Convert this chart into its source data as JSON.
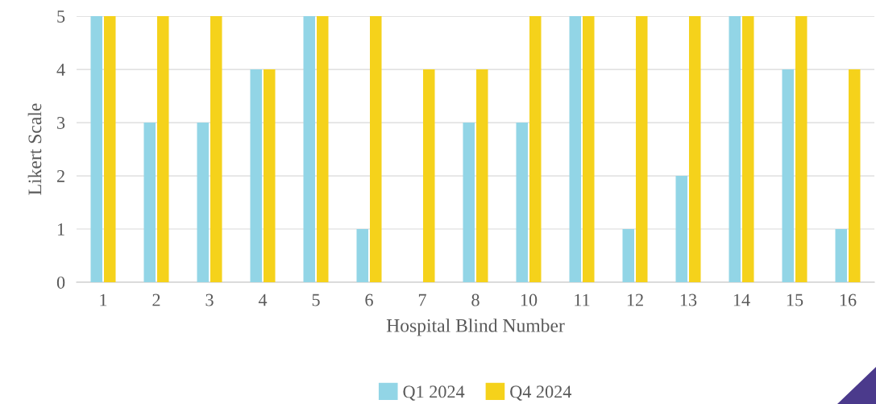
{
  "chart_data": {
    "type": "bar",
    "xlabel": "Hospital Blind Number",
    "ylabel": "Likert Scale",
    "categories": [
      "1",
      "2",
      "3",
      "4",
      "5",
      "6",
      "7",
      "8",
      "10",
      "11",
      "12",
      "13",
      "14",
      "15",
      "16"
    ],
    "series": [
      {
        "name": "Q1 2024",
        "color": "#92d5e6",
        "values": [
          5,
          3,
          3,
          4,
          5,
          1,
          0,
          3,
          3,
          5,
          1,
          2,
          5,
          4,
          1
        ]
      },
      {
        "name": "Q4 2024",
        "color": "#f5d21b",
        "values": [
          5,
          5,
          5,
          4,
          5,
          5,
          4,
          4,
          5,
          5,
          5,
          5,
          5,
          5,
          4
        ]
      }
    ],
    "ylim": [
      0,
      5
    ],
    "yticks": [
      0,
      1,
      2,
      3,
      4,
      5
    ],
    "grid": "y",
    "legend": "bottom"
  }
}
